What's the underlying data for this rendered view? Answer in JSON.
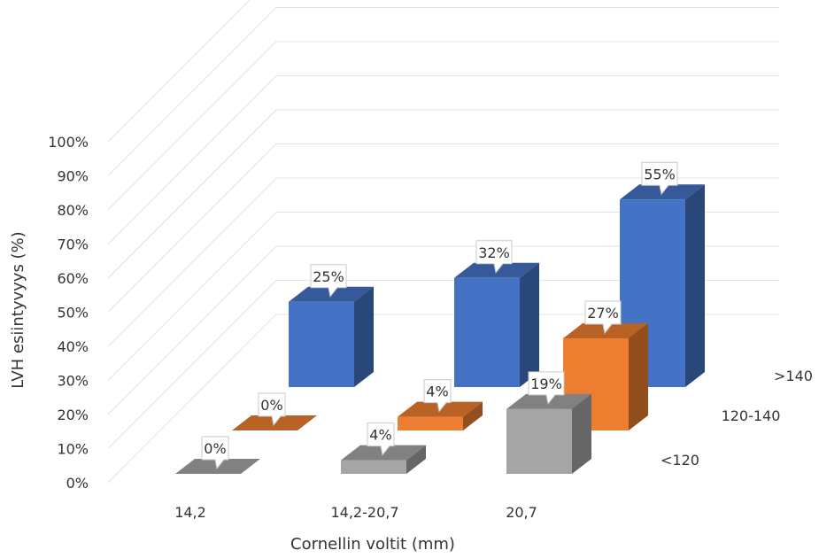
{
  "chart_data": {
    "type": "bar",
    "title": "",
    "xlabel": "Cornellin voltit (mm)",
    "ylabel": "LVH esiintyvyys (%)",
    "ylim": [
      0,
      100
    ],
    "y_ticks": [
      "0%",
      "10%",
      "20%",
      "30%",
      "40%",
      "50%",
      "60%",
      "70%",
      "80%",
      "90%",
      "100%"
    ],
    "categories": [
      "14,2",
      "14,2-20,7",
      "20,7"
    ],
    "series": [
      {
        "name": "<120",
        "values": [
          0,
          4,
          19
        ],
        "labels": [
          "0%",
          "4%",
          "19%"
        ],
        "color": "#a5a5a5"
      },
      {
        "name": "120-140",
        "values": [
          0,
          4,
          27
        ],
        "labels": [
          "0%",
          "4%",
          "27%"
        ],
        "color": "#ed7d31"
      },
      {
        "name": ">140",
        "values": [
          25,
          32,
          55
        ],
        "labels": [
          "25%",
          "32%",
          "55%"
        ],
        "color": "#4472c4"
      }
    ],
    "grid": true,
    "style": "3d-clustered-depth"
  }
}
